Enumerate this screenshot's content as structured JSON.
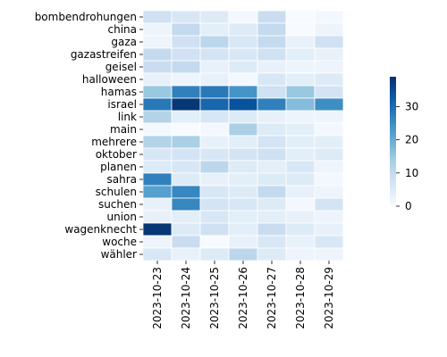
{
  "chart_data": {
    "type": "heatmap",
    "title": "",
    "xlabel": "",
    "ylabel": "",
    "x_categories": [
      "2023-10-23",
      "2023-10-24",
      "2023-10-25",
      "2023-10-26",
      "2023-10-27",
      "2023-10-28",
      "2023-10-29"
    ],
    "y_categories": [
      "bombendrohungen",
      "china",
      "gaza",
      "gazastreifen",
      "geisel",
      "halloween",
      "hamas",
      "israel",
      "link",
      "main",
      "mehrere",
      "oktober",
      "planen",
      "sahra",
      "schulen",
      "suchen",
      "union",
      "wagenknecht",
      "woche",
      "wähler"
    ],
    "values": [
      [
        8,
        6,
        5,
        1,
        9,
        0,
        1
      ],
      [
        2,
        10,
        4,
        5,
        10,
        0,
        2
      ],
      [
        2,
        8,
        11,
        6,
        10,
        3,
        8
      ],
      [
        10,
        8,
        7,
        6,
        8,
        4,
        3
      ],
      [
        9,
        10,
        3,
        5,
        3,
        2,
        2
      ],
      [
        3,
        2,
        3,
        1,
        6,
        4,
        5
      ],
      [
        15,
        27,
        28,
        24,
        8,
        15,
        7
      ],
      [
        28,
        38,
        31,
        34,
        27,
        17,
        25
      ],
      [
        12,
        4,
        6,
        5,
        3,
        2,
        2
      ],
      [
        1,
        0,
        1,
        13,
        5,
        4,
        1
      ],
      [
        12,
        13,
        3,
        4,
        7,
        4,
        4
      ],
      [
        6,
        7,
        6,
        7,
        8,
        4,
        5
      ],
      [
        5,
        6,
        11,
        5,
        4,
        6,
        2
      ],
      [
        27,
        5,
        3,
        4,
        5,
        5,
        1
      ],
      [
        22,
        26,
        6,
        5,
        10,
        3,
        2
      ],
      [
        3,
        26,
        7,
        6,
        5,
        1,
        7
      ],
      [
        3,
        4,
        6,
        4,
        4,
        3,
        2
      ],
      [
        38,
        5,
        8,
        4,
        9,
        5,
        3
      ],
      [
        2,
        9,
        0,
        3,
        6,
        3,
        6
      ],
      [
        6,
        3,
        5,
        11,
        5,
        2,
        2
      ]
    ],
    "colorbar": {
      "min": 0,
      "max": 39,
      "ticks": [
        0,
        10,
        20,
        30
      ]
    },
    "colormap": "Blues",
    "colors": {
      "low": "#f7fbff",
      "high": "#08306b"
    }
  }
}
